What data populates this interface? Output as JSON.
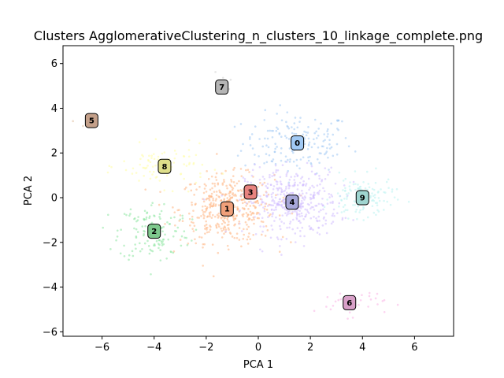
{
  "chart_data": {
    "type": "scatter",
    "title": "Clusters AgglomerativeClustering_n_clusters_10_linkage_complete.png",
    "xlabel": "PCA 1",
    "ylabel": "PCA 2",
    "xlim": [
      -7.5,
      7.5
    ],
    "ylim": [
      -6.2,
      6.8
    ],
    "xticks": [
      -6,
      -4,
      -2,
      0,
      2,
      4,
      6
    ],
    "yticks": [
      -6,
      -4,
      -2,
      0,
      2,
      4,
      6
    ],
    "grid": false,
    "point_alpha": 0.55,
    "clusters": [
      {
        "label": "0",
        "color": "#a1c9f4",
        "centroid": [
          1.5,
          2.45
        ],
        "spread": [
          1.4,
          0.9
        ],
        "count": 170
      },
      {
        "label": "1",
        "color": "#ffb482",
        "centroid": [
          -1.2,
          -0.5
        ],
        "spread": [
          1.2,
          1.0
        ],
        "count": 420
      },
      {
        "label": "2",
        "color": "#8de5a1",
        "centroid": [
          -4.0,
          -1.5
        ],
        "spread": [
          0.9,
          0.9
        ],
        "count": 140
      },
      {
        "label": "3",
        "color": "#ff9f9b",
        "centroid": [
          -0.3,
          0.25
        ],
        "spread": [
          0.25,
          0.2
        ],
        "count": 12
      },
      {
        "label": "4",
        "color": "#d0bbff",
        "centroid": [
          1.3,
          -0.2
        ],
        "spread": [
          1.2,
          1.0
        ],
        "count": 400
      },
      {
        "label": "5",
        "color": "#debb9b",
        "centroid": [
          -6.4,
          3.45
        ],
        "spread": [
          0.4,
          0.15
        ],
        "count": 10
      },
      {
        "label": "6",
        "color": "#fab0e4",
        "centroid": [
          3.5,
          -4.7
        ],
        "spread": [
          0.9,
          0.4
        ],
        "count": 35
      },
      {
        "label": "7",
        "color": "#cfcfcf",
        "centroid": [
          -1.4,
          4.95
        ],
        "spread": [
          0.3,
          0.4
        ],
        "count": 10
      },
      {
        "label": "8",
        "color": "#fffea3",
        "centroid": [
          -3.6,
          1.4
        ],
        "spread": [
          1.1,
          0.6
        ],
        "count": 90
      },
      {
        "label": "9",
        "color": "#b9f2f0",
        "centroid": [
          4.0,
          0.0
        ],
        "spread": [
          0.8,
          0.6
        ],
        "count": 130
      }
    ],
    "centroid_marker_colors": [
      "#a1c9f4",
      "#f0a07a",
      "#7ec98d",
      "#e8837f",
      "#a7a7d8",
      "#c4a08a",
      "#d8a0c8",
      "#b5b5b5",
      "#dede8a",
      "#9fd5d0"
    ]
  }
}
